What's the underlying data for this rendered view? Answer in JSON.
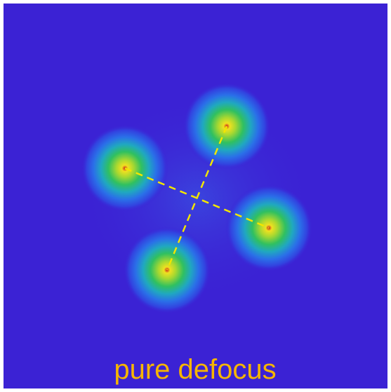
{
  "label": "pure defocus"
}
